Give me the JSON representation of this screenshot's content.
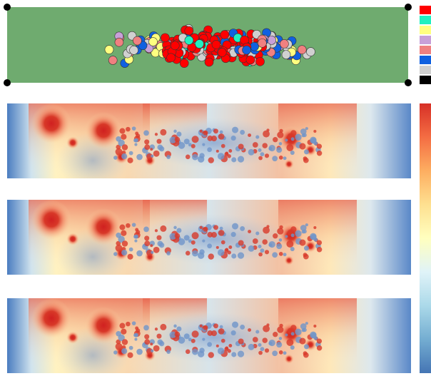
{
  "legend": {
    "colors": [
      "#ff0000",
      "#20f0c0",
      "#ffff80",
      "#c8a0d8",
      "#f08080",
      "#1060e0",
      "#d0d0d0",
      "#000000"
    ]
  },
  "colorbar": {
    "colors": [
      "#d73027",
      "#f46d43",
      "#fdae61",
      "#fee090",
      "#ffffbf",
      "#e0f3f8",
      "#abd9e9",
      "#74add1",
      "#4575b4"
    ]
  }
}
